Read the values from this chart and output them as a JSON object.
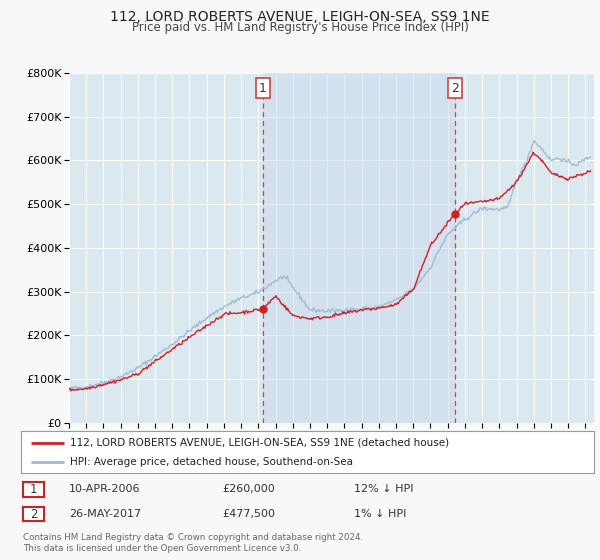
{
  "title_line1": "112, LORD ROBERTS AVENUE, LEIGH-ON-SEA, SS9 1NE",
  "title_line2": "Price paid vs. HM Land Registry's House Price Index (HPI)",
  "ylim": [
    0,
    800000
  ],
  "xlim_start": 1995.0,
  "xlim_end": 2025.5,
  "yticks": [
    0,
    100000,
    200000,
    300000,
    400000,
    500000,
    600000,
    700000,
    800000
  ],
  "ytick_labels": [
    "£0",
    "£100K",
    "£200K",
    "£300K",
    "£400K",
    "£500K",
    "£600K",
    "£700K",
    "£800K"
  ],
  "background_color": "#f8f8f8",
  "plot_bg_color": "#dce8f0",
  "grid_color": "#ffffff",
  "hpi_color": "#a0bcd8",
  "price_color": "#cc2222",
  "marker_color": "#cc2222",
  "vline_color": "#cc4444",
  "marker1_x": 2006.27,
  "marker1_y": 260000,
  "marker2_x": 2017.4,
  "marker2_y": 477500,
  "legend_line1": "112, LORD ROBERTS AVENUE, LEIGH-ON-SEA, SS9 1NE (detached house)",
  "legend_line2": "HPI: Average price, detached house, Southend-on-Sea",
  "table_row1": [
    "1",
    "10-APR-2006",
    "£260,000",
    "12% ↓ HPI"
  ],
  "table_row2": [
    "2",
    "26-MAY-2017",
    "£477,500",
    "1% ↓ HPI"
  ],
  "footnote": "Contains HM Land Registry data © Crown copyright and database right 2024.\nThis data is licensed under the Open Government Licence v3.0."
}
